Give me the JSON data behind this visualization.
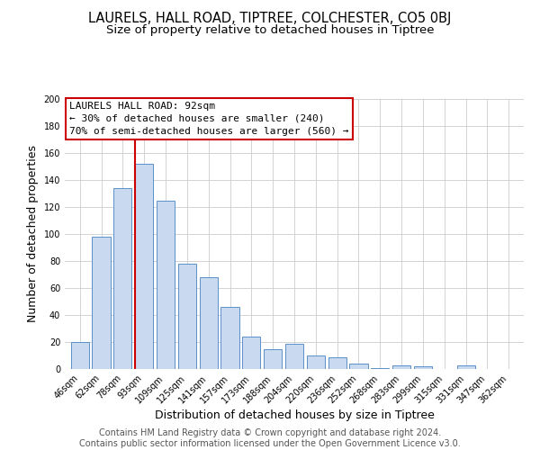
{
  "title": "LAURELS, HALL ROAD, TIPTREE, COLCHESTER, CO5 0BJ",
  "subtitle": "Size of property relative to detached houses in Tiptree",
  "xlabel": "Distribution of detached houses by size in Tiptree",
  "ylabel": "Number of detached properties",
  "categories": [
    "46sqm",
    "62sqm",
    "78sqm",
    "93sqm",
    "109sqm",
    "125sqm",
    "141sqm",
    "157sqm",
    "173sqm",
    "188sqm",
    "204sqm",
    "220sqm",
    "236sqm",
    "252sqm",
    "268sqm",
    "283sqm",
    "299sqm",
    "315sqm",
    "331sqm",
    "347sqm",
    "362sqm"
  ],
  "values": [
    20,
    98,
    134,
    152,
    125,
    78,
    68,
    46,
    24,
    15,
    19,
    10,
    9,
    4,
    1,
    3,
    2,
    0,
    3,
    0,
    0
  ],
  "bar_color": "#c9d9f0",
  "bar_edge_color": "#5b8fc9",
  "marker_line_color": "#cc0000",
  "marker_box_color": "#ffffff",
  "marker_box_edge_color": "#cc0000",
  "annotation_line1": "LAURELS HALL ROAD: 92sqm",
  "annotation_line2": "← 30% of detached houses are smaller (240)",
  "annotation_line3": "70% of semi-detached houses are larger (560) →",
  "ylim": [
    0,
    200
  ],
  "yticks": [
    0,
    20,
    40,
    60,
    80,
    100,
    120,
    140,
    160,
    180,
    200
  ],
  "footer_line1": "Contains HM Land Registry data © Crown copyright and database right 2024.",
  "footer_line2": "Contains public sector information licensed under the Open Government Licence v3.0.",
  "background_color": "#ffffff",
  "grid_color": "#cccccc",
  "title_fontsize": 10.5,
  "subtitle_fontsize": 9.5,
  "axis_label_fontsize": 9,
  "tick_fontsize": 7,
  "annotation_fontsize": 8,
  "footer_fontsize": 7
}
